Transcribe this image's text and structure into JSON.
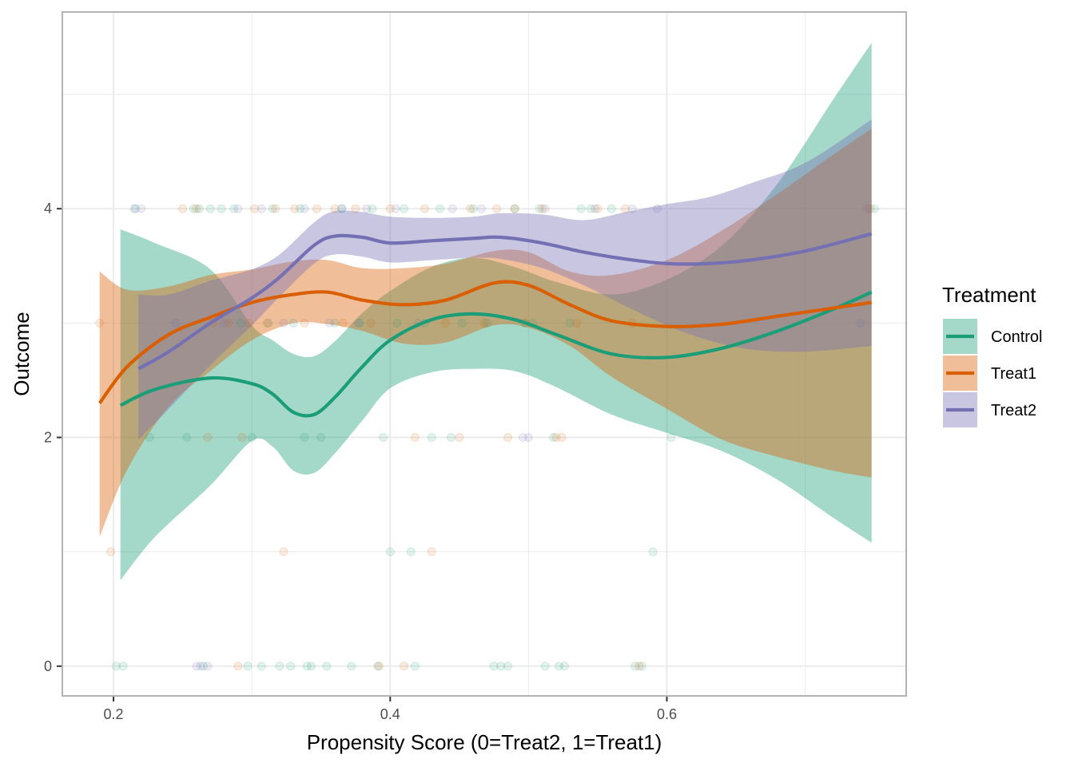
{
  "chart_data": {
    "type": "scatter",
    "title": "",
    "xlabel": "Propensity Score (0=Treat2, 1=Treat1)",
    "ylabel": "Outcome",
    "xlim": [
      0.163,
      0.773
    ],
    "ylim": [
      -0.26,
      5.72
    ],
    "x_ticks": [
      {
        "value": 0.2,
        "label": "0.2"
      },
      {
        "value": 0.4,
        "label": "0.4"
      },
      {
        "value": 0.6,
        "label": "0.6"
      }
    ],
    "y_ticks": [
      {
        "value": 0,
        "label": "0"
      },
      {
        "value": 2,
        "label": "2"
      },
      {
        "value": 4,
        "label": "4"
      }
    ],
    "grid": true,
    "legend": {
      "title": "Treatment",
      "placement": "right"
    },
    "smoother": "loess with confidence band",
    "series": [
      {
        "name": "Control",
        "color": "#1B9E77",
        "fill_opacity": 0.4,
        "point_opacity": 0.12,
        "smooth": {
          "x": [
            0.205,
            0.23,
            0.27,
            0.3,
            0.315,
            0.33,
            0.345,
            0.36,
            0.38,
            0.4,
            0.43,
            0.46,
            0.49,
            0.52,
            0.56,
            0.6,
            0.64,
            0.68,
            0.72,
            0.748
          ],
          "y": [
            2.28,
            2.42,
            2.52,
            2.47,
            2.38,
            2.22,
            2.2,
            2.35,
            2.62,
            2.85,
            3.03,
            3.08,
            3.03,
            2.9,
            2.73,
            2.7,
            2.78,
            2.93,
            3.12,
            3.27
          ],
          "lower": [
            0.75,
            1.13,
            1.58,
            1.97,
            1.92,
            1.71,
            1.69,
            1.86,
            2.15,
            2.43,
            2.57,
            2.6,
            2.58,
            2.44,
            2.2,
            2.04,
            1.88,
            1.63,
            1.3,
            1.08
          ],
          "upper": [
            3.82,
            3.7,
            3.47,
            2.98,
            2.85,
            2.73,
            2.71,
            2.84,
            3.09,
            3.28,
            3.49,
            3.57,
            3.49,
            3.36,
            3.25,
            3.38,
            3.68,
            4.22,
            4.95,
            5.45
          ]
        },
        "points": [
          [
            0.202,
            0
          ],
          [
            0.207,
            0
          ],
          [
            0.216,
            4
          ],
          [
            0.226,
            2
          ],
          [
            0.253,
            2
          ],
          [
            0.258,
            4
          ],
          [
            0.262,
            4
          ],
          [
            0.265,
            0
          ],
          [
            0.27,
            4
          ],
          [
            0.278,
            4
          ],
          [
            0.287,
            4
          ],
          [
            0.292,
            3
          ],
          [
            0.297,
            0
          ],
          [
            0.3,
            2
          ],
          [
            0.307,
            0
          ],
          [
            0.312,
            3
          ],
          [
            0.315,
            4
          ],
          [
            0.32,
            0
          ],
          [
            0.328,
            0
          ],
          [
            0.33,
            3
          ],
          [
            0.335,
            4
          ],
          [
            0.338,
            2
          ],
          [
            0.34,
            0
          ],
          [
            0.343,
            0
          ],
          [
            0.35,
            2
          ],
          [
            0.354,
            0
          ],
          [
            0.36,
            3
          ],
          [
            0.365,
            4
          ],
          [
            0.372,
            0
          ],
          [
            0.378,
            3
          ],
          [
            0.387,
            4
          ],
          [
            0.391,
            0
          ],
          [
            0.395,
            2
          ],
          [
            0.4,
            1
          ],
          [
            0.405,
            3
          ],
          [
            0.41,
            4
          ],
          [
            0.415,
            1
          ],
          [
            0.418,
            0
          ],
          [
            0.425,
            3
          ],
          [
            0.43,
            2
          ],
          [
            0.436,
            4
          ],
          [
            0.444,
            2
          ],
          [
            0.452,
            3
          ],
          [
            0.46,
            4
          ],
          [
            0.47,
            3
          ],
          [
            0.475,
            0
          ],
          [
            0.48,
            0
          ],
          [
            0.485,
            0
          ],
          [
            0.49,
            4
          ],
          [
            0.497,
            3
          ],
          [
            0.503,
            3
          ],
          [
            0.508,
            4
          ],
          [
            0.512,
            0
          ],
          [
            0.518,
            2
          ],
          [
            0.522,
            0
          ],
          [
            0.526,
            0
          ],
          [
            0.53,
            3
          ],
          [
            0.538,
            4
          ],
          [
            0.545,
            4
          ],
          [
            0.56,
            4
          ],
          [
            0.577,
            0
          ],
          [
            0.582,
            0
          ],
          [
            0.59,
            1
          ],
          [
            0.603,
            2
          ],
          [
            0.75,
            4
          ]
        ]
      },
      {
        "name": "Treat1",
        "color": "#D95F02",
        "fill_opacity": 0.4,
        "point_opacity": 0.12,
        "smooth": {
          "x": [
            0.19,
            0.21,
            0.24,
            0.27,
            0.3,
            0.33,
            0.355,
            0.38,
            0.41,
            0.44,
            0.475,
            0.5,
            0.53,
            0.56,
            0.6,
            0.64,
            0.68,
            0.72,
            0.748
          ],
          "y": [
            2.3,
            2.62,
            2.9,
            3.05,
            3.18,
            3.25,
            3.27,
            3.2,
            3.16,
            3.2,
            3.35,
            3.33,
            3.16,
            3.02,
            2.97,
            2.99,
            3.06,
            3.13,
            3.18
          ],
          "lower": [
            1.13,
            1.72,
            2.27,
            2.58,
            2.85,
            3.0,
            2.99,
            2.93,
            2.82,
            2.83,
            2.98,
            2.96,
            2.8,
            2.53,
            2.25,
            1.98,
            1.83,
            1.71,
            1.65
          ],
          "upper": [
            3.45,
            3.29,
            3.32,
            3.42,
            3.47,
            3.54,
            3.55,
            3.48,
            3.48,
            3.52,
            3.63,
            3.62,
            3.45,
            3.42,
            3.55,
            3.81,
            4.13,
            4.47,
            4.7
          ]
        },
        "points": [
          [
            0.19,
            3
          ],
          [
            0.198,
            1
          ],
          [
            0.25,
            4
          ],
          [
            0.26,
            4
          ],
          [
            0.268,
            2
          ],
          [
            0.272,
            3
          ],
          [
            0.283,
            3
          ],
          [
            0.29,
            0
          ],
          [
            0.293,
            2
          ],
          [
            0.298,
            3
          ],
          [
            0.302,
            4
          ],
          [
            0.311,
            3
          ],
          [
            0.317,
            4
          ],
          [
            0.323,
            1
          ],
          [
            0.331,
            4
          ],
          [
            0.338,
            3
          ],
          [
            0.347,
            4
          ],
          [
            0.36,
            4
          ],
          [
            0.366,
            3
          ],
          [
            0.375,
            4
          ],
          [
            0.386,
            3
          ],
          [
            0.392,
            0
          ],
          [
            0.4,
            4
          ],
          [
            0.41,
            0
          ],
          [
            0.418,
            2
          ],
          [
            0.425,
            4
          ],
          [
            0.43,
            1
          ],
          [
            0.44,
            3
          ],
          [
            0.45,
            2
          ],
          [
            0.458,
            4
          ],
          [
            0.468,
            3
          ],
          [
            0.477,
            4
          ],
          [
            0.485,
            2
          ],
          [
            0.49,
            4
          ],
          [
            0.498,
            3
          ],
          [
            0.51,
            4
          ],
          [
            0.52,
            2
          ],
          [
            0.524,
            2
          ],
          [
            0.535,
            3
          ],
          [
            0.55,
            4
          ],
          [
            0.57,
            4
          ],
          [
            0.575,
            3
          ],
          [
            0.58,
            0
          ],
          [
            0.747,
            4
          ]
        ]
      },
      {
        "name": "Treat2",
        "color": "#7570B3",
        "fill_opacity": 0.4,
        "point_opacity": 0.12,
        "smooth": {
          "x": [
            0.218,
            0.24,
            0.27,
            0.3,
            0.32,
            0.345,
            0.36,
            0.38,
            0.4,
            0.43,
            0.46,
            0.48,
            0.51,
            0.54,
            0.57,
            0.6,
            0.63,
            0.66,
            0.7,
            0.748
          ],
          "y": [
            2.6,
            2.75,
            3.0,
            3.22,
            3.4,
            3.68,
            3.76,
            3.75,
            3.7,
            3.72,
            3.74,
            3.75,
            3.7,
            3.62,
            3.56,
            3.52,
            3.52,
            3.55,
            3.63,
            3.78
          ],
          "lower": [
            1.98,
            2.25,
            2.63,
            2.98,
            3.23,
            3.52,
            3.6,
            3.58,
            3.53,
            3.55,
            3.57,
            3.56,
            3.48,
            3.33,
            3.15,
            2.98,
            2.85,
            2.77,
            2.75,
            2.8
          ],
          "upper": [
            3.25,
            3.25,
            3.37,
            3.47,
            3.6,
            3.88,
            3.98,
            3.97,
            3.93,
            3.92,
            3.93,
            3.96,
            3.95,
            3.9,
            3.97,
            4.04,
            4.1,
            4.22,
            4.4,
            4.78
          ]
        },
        "points": [
          [
            0.215,
            4
          ],
          [
            0.22,
            4
          ],
          [
            0.245,
            3
          ],
          [
            0.26,
            0
          ],
          [
            0.263,
            0
          ],
          [
            0.268,
            0
          ],
          [
            0.28,
            3
          ],
          [
            0.29,
            4
          ],
          [
            0.307,
            4
          ],
          [
            0.323,
            3
          ],
          [
            0.338,
            4
          ],
          [
            0.356,
            3
          ],
          [
            0.365,
            4
          ],
          [
            0.377,
            3
          ],
          [
            0.383,
            4
          ],
          [
            0.404,
            4
          ],
          [
            0.42,
            3
          ],
          [
            0.445,
            4
          ],
          [
            0.466,
            4
          ],
          [
            0.496,
            2
          ],
          [
            0.5,
            2
          ],
          [
            0.512,
            4
          ],
          [
            0.548,
            4
          ],
          [
            0.575,
            4
          ],
          [
            0.593,
            4
          ],
          [
            0.74,
            3
          ],
          [
            0.745,
            4
          ]
        ]
      }
    ]
  }
}
